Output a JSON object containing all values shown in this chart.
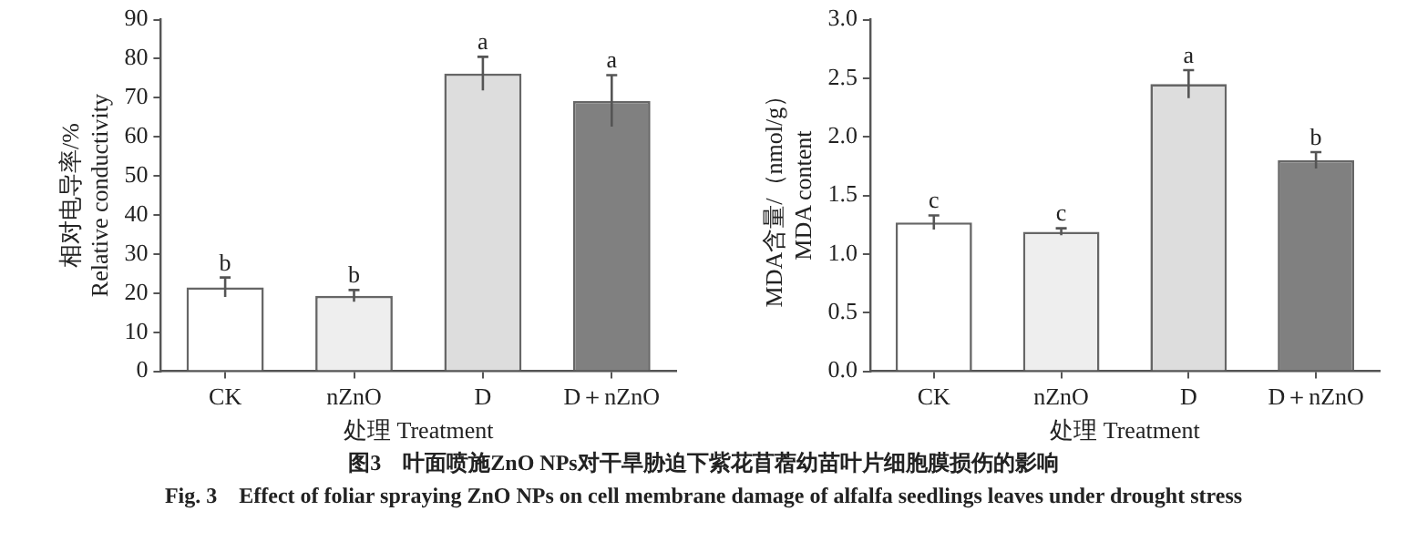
{
  "chart_data": [
    {
      "type": "bar",
      "categories": [
        "CK",
        "nZnO",
        "D",
        "D＋nZnO"
      ],
      "values": [
        21.5,
        19.3,
        76.2,
        69.2
      ],
      "errors": [
        2.5,
        1.5,
        4.3,
        6.6
      ],
      "value_labels": [
        "b",
        "b",
        "a",
        "a"
      ],
      "colors": [
        "#ffffff",
        "#eeeeee",
        "#dddddd",
        "#808080"
      ],
      "ylabel": "相对电导率/%\nRelative conductivity",
      "xlabel": "处理 Treatment",
      "ylim": [
        0,
        90
      ],
      "yticks": [
        0,
        10,
        20,
        30,
        40,
        50,
        60,
        70,
        80,
        90
      ],
      "grid": false,
      "legend": false,
      "annotations": [
        "图3　叶面喷施ZnO NPs对干旱胁迫下紫花苜蓿幼苗叶片细胞膜损伤的影响",
        "Fig. 3　Effect of foliar spraying ZnO NPs on cell membrane damage of alfalfa seedlings leaves under drought stress"
      ]
    },
    {
      "type": "bar",
      "categories": [
        "CK",
        "nZnO",
        "D",
        "D＋nZnO"
      ],
      "values": [
        1.27,
        1.19,
        2.45,
        1.8
      ],
      "errors": [
        0.06,
        0.03,
        0.12,
        0.07
      ],
      "value_labels": [
        "c",
        "c",
        "a",
        "b"
      ],
      "colors": [
        "#ffffff",
        "#eeeeee",
        "#dddddd",
        "#808080"
      ],
      "ylabel": "MDA含量/（nmol/g）\nMDA content",
      "xlabel": "处理 Treatment",
      "ylim": [
        0,
        3.0
      ],
      "yticks": [
        {
          "value": 0,
          "label": "0.0"
        },
        {
          "value": 0.5,
          "label": "0.5"
        },
        {
          "value": 1,
          "label": "1.0"
        },
        {
          "value": 1.5,
          "label": "1.5"
        },
        {
          "value": 2,
          "label": "2.0"
        },
        {
          "value": 2.5,
          "label": "2.5"
        },
        {
          "value": 3,
          "label": "3.0"
        }
      ],
      "grid": false,
      "legend": false
    }
  ]
}
